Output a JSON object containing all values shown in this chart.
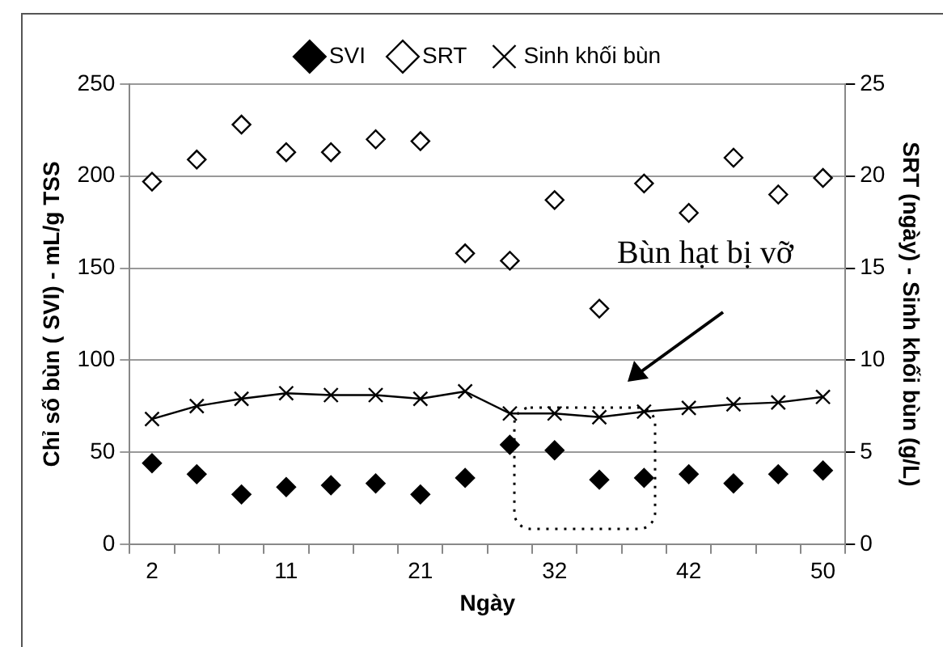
{
  "chart_data": {
    "type": "scatter",
    "xlabel": "Ngày",
    "ylabel": "Chỉ số bùn ( SVI) - mL/g TSS",
    "y2label": "SRT (ngày) - Sinh khối bùn (g/L)",
    "categories": [
      "2",
      null,
      null,
      "11",
      null,
      null,
      "21",
      null,
      null,
      "32",
      null,
      null,
      "42",
      null,
      null,
      "50"
    ],
    "series": [
      {
        "name": "SVI",
        "marker": "diamond",
        "color": "#000000",
        "values": [
          44,
          38,
          27,
          31,
          32,
          33,
          27,
          36,
          54,
          51,
          35,
          36,
          38,
          33,
          38,
          40
        ]
      },
      {
        "name": "SRT",
        "marker": "diamond",
        "color": "#ffffff",
        "axis": "y2",
        "values": [
          19.7,
          20.9,
          22.8,
          21.3,
          21.3,
          22.0,
          21.9,
          15.8,
          15.4,
          18.7,
          12.8,
          19.6,
          18.0,
          21.0,
          19.0,
          19.9
        ]
      },
      {
        "name": "Sinh khối bùn",
        "type": "line",
        "marker": "cross",
        "color": "#000000",
        "axis": "y2",
        "values": [
          6.8,
          7.5,
          7.9,
          8.2,
          8.1,
          8.1,
          7.9,
          8.3,
          7.1,
          7.1,
          6.9,
          7.2,
          7.4,
          7.6,
          7.7,
          8.0
        ]
      }
    ],
    "ylim": [
      0,
      250
    ],
    "yticks": [
      0,
      50,
      100,
      150,
      200,
      250
    ],
    "y2lim": [
      0,
      25
    ],
    "y2ticks": [
      0,
      5,
      10,
      15,
      20,
      25
    ],
    "grid": "y",
    "legend": "top",
    "annotations": [
      "Bùn hạt bị vỡ"
    ]
  }
}
